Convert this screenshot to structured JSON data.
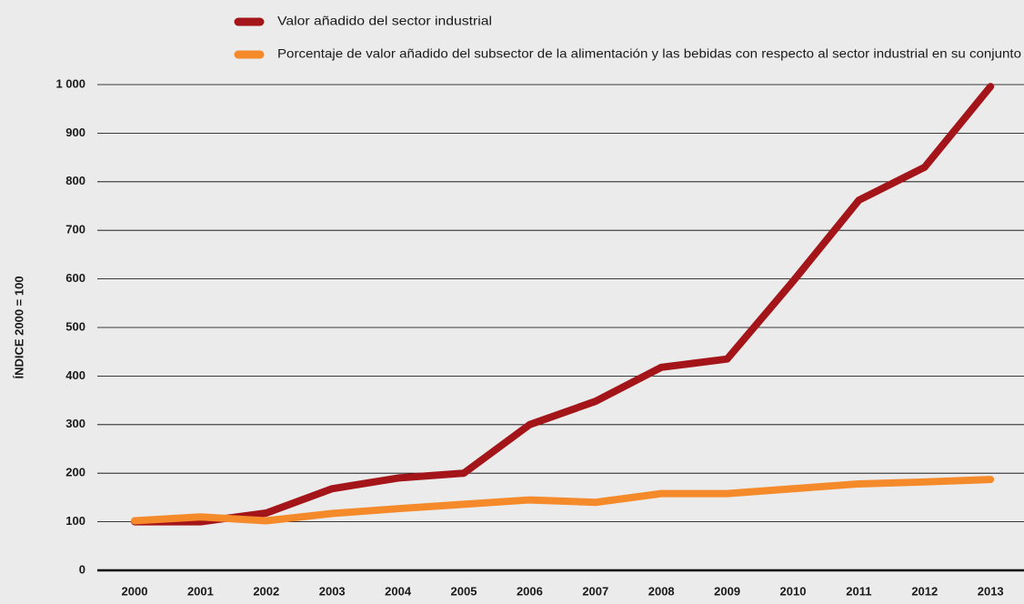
{
  "chart_data": {
    "type": "line",
    "y_label": "ÍNDICE 2000 = 100",
    "categories": [
      "2000",
      "2001",
      "2002",
      "2003",
      "2004",
      "2005",
      "2006",
      "2007",
      "2008",
      "2009",
      "2010",
      "2011",
      "2012",
      "2013"
    ],
    "series": [
      {
        "name": "Valor añadido del sector industrial",
        "color": "#a31519",
        "values": [
          100,
          100,
          118,
          168,
          190,
          200,
          300,
          348,
          418,
          435,
          595,
          762,
          830,
          996
        ]
      },
      {
        "name": "Porcentaje de valor añadido del subsector de la alimentación y las bebidas con respecto al sector industrial en su conjunto",
        "color": "#f58a2b",
        "values": [
          102,
          110,
          102,
          117,
          127,
          136,
          145,
          140,
          158,
          158,
          168,
          178,
          182,
          187
        ]
      }
    ],
    "ylim": [
      0,
      1000
    ],
    "yticks": [
      0,
      100,
      200,
      300,
      400,
      500,
      600,
      700,
      800,
      900,
      {
        "value": 1000,
        "label": "1 000"
      }
    ],
    "grid": true,
    "legend": "top"
  }
}
